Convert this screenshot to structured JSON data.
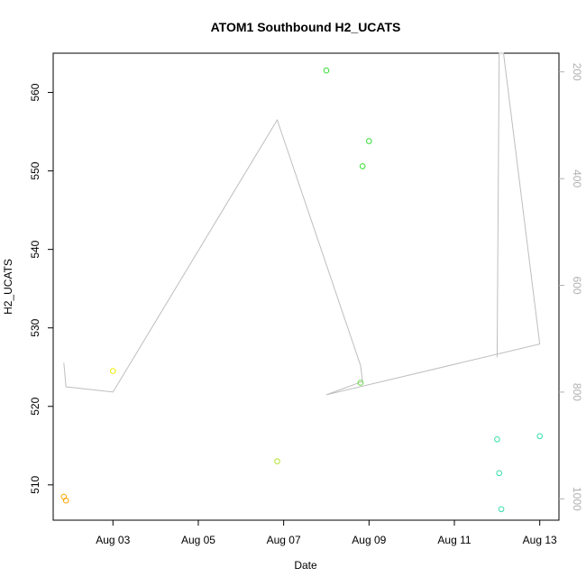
{
  "chart_data": {
    "type": "scatter",
    "title": "ATOM1 Southbound H2_UCATS",
    "xlabel": "Date",
    "ylabel": "H2_UCATS",
    "x_ticks": [
      "Aug 03",
      "Aug 05",
      "Aug 07",
      "Aug 09",
      "Aug 11",
      "Aug 13"
    ],
    "xlim": [
      1.6,
      13.45
    ],
    "ylim": [
      505.5,
      565.0
    ],
    "y_ticks": [
      510,
      520,
      530,
      540,
      550,
      560
    ],
    "y2_ticks": [
      200,
      400,
      600,
      800,
      1000
    ],
    "y2lim": [
      1040,
      165
    ],
    "grid": false,
    "points": [
      {
        "x": 1.85,
        "y": 508.5,
        "color": "#FFA500"
      },
      {
        "x": 1.9,
        "y": 508.0,
        "color": "#FFA500"
      },
      {
        "x": 3.0,
        "y": 524.5,
        "color": "#EEEE00"
      },
      {
        "x": 6.85,
        "y": 513.0,
        "color": "#B0E030"
      },
      {
        "x": 8.0,
        "y": 562.8,
        "color": "#33DD33"
      },
      {
        "x": 8.85,
        "y": 550.6,
        "color": "#33DD33"
      },
      {
        "x": 9.0,
        "y": 553.8,
        "color": "#33DD33"
      },
      {
        "x": 8.8,
        "y": 523.0,
        "color": "#66DD44"
      },
      {
        "x": 12.0,
        "y": 515.8,
        "color": "#33DDAA"
      },
      {
        "x": 12.05,
        "y": 511.5,
        "color": "#33DDAA"
      },
      {
        "x": 12.1,
        "y": 506.9,
        "color": "#33DDAA"
      },
      {
        "x": 13.0,
        "y": 516.2,
        "color": "#33DDAA"
      }
    ],
    "secondary_line": {
      "color": "#BEBEBE",
      "x": [
        1.85,
        1.9,
        3.0,
        6.85,
        8.8,
        8.85,
        8.0,
        13.0,
        12.15,
        12.05,
        12.0
      ],
      "y2": [
        745,
        790,
        800,
        290,
        750,
        780,
        805,
        710,
        165,
        165,
        735
      ]
    }
  }
}
